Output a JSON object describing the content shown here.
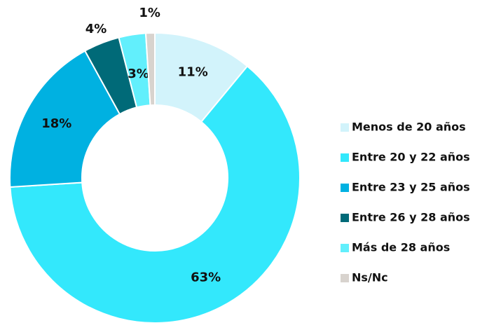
{
  "chart_data": {
    "type": "donut",
    "categories": [
      "Menos de 20 años",
      "Entre 20 y 22 años",
      "Entre 23 y 25 años",
      "Entre 26 y 28 años",
      "Más de 28 años",
      "Ns/Nc"
    ],
    "values": [
      11,
      63,
      18,
      4,
      3,
      1
    ],
    "value_labels": [
      "11%",
      "63%",
      "18%",
      "4%",
      "3%",
      "1%"
    ],
    "colors": [
      "#d2f3fb",
      "#33e8fc",
      "#00b1e1",
      "#006a78",
      "#62effc",
      "#d8d3ce"
    ],
    "legend": "right"
  }
}
